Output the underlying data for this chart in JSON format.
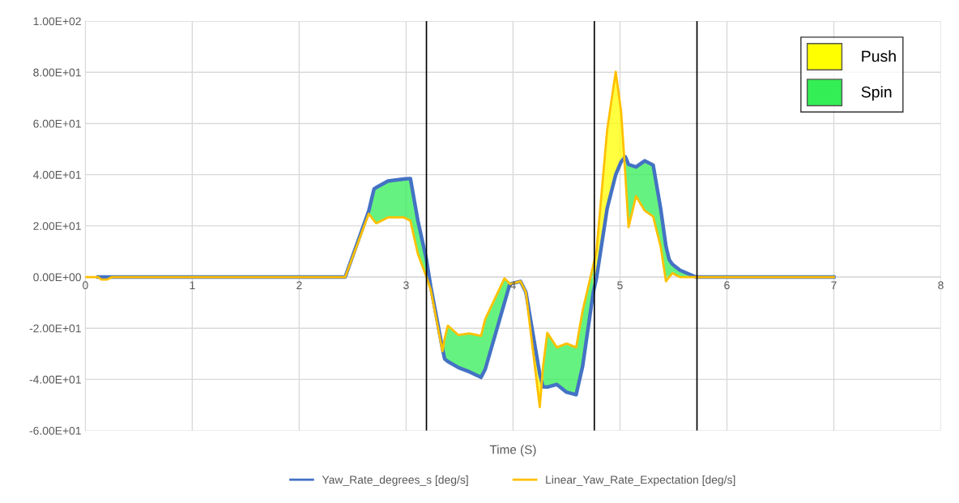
{
  "chart_data": {
    "type": "line",
    "xlabel": "Time (S)",
    "x": [
      0,
      0.12,
      0.15,
      0.2,
      0.25,
      2.43,
      2.65,
      2.7,
      2.72,
      2.83,
      2.98,
      3.04,
      3.11,
      3.19,
      3.23,
      3.34,
      3.36,
      3.39,
      3.49,
      3.59,
      3.7,
      3.74,
      3.92,
      3.97,
      4.07,
      4.12,
      4.25,
      4.28,
      4.32,
      4.41,
      4.5,
      4.59,
      4.65,
      4.75,
      4.78,
      4.88,
      4.96,
      5.01,
      5.05,
      5.08,
      5.15,
      5.23,
      5.31,
      5.38,
      5.43,
      5.46,
      5.49,
      5.56,
      5.71,
      7.0
    ],
    "series": [
      {
        "name": "Push",
        "color": "#ffff00",
        "values": [
          null,
          null,
          null,
          null,
          null,
          null,
          null,
          null,
          null,
          null,
          null,
          null,
          null,
          null,
          null,
          null,
          null,
          null,
          null,
          null,
          null,
          null,
          null,
          null,
          null,
          null,
          null,
          null,
          null,
          null,
          null,
          null,
          null,
          null,
          null,
          null,
          null,
          null,
          null,
          null,
          null,
          null,
          null,
          null,
          null,
          null,
          null,
          null,
          null,
          null
        ],
        "lower": [
          null,
          null,
          null,
          null,
          null,
          null,
          null,
          null,
          null,
          null,
          null,
          null,
          null,
          0,
          -5,
          -29,
          null,
          null,
          null,
          null,
          null,
          null,
          null,
          null,
          -1.7,
          -6,
          -50.8,
          -35,
          null,
          null,
          null,
          null,
          null,
          4.6,
          10,
          57.5,
          80.2,
          64.8,
          40,
          null,
          null,
          null,
          null,
          null,
          null,
          null,
          null,
          null,
          null,
          null
        ],
        "upper": [
          null,
          null,
          null,
          null,
          null,
          null,
          null,
          null,
          null,
          null,
          null,
          null,
          null,
          6.8,
          -3.7,
          -28,
          null,
          null,
          null,
          null,
          null,
          null,
          null,
          null,
          -1.7,
          -5.9,
          -38,
          -42.9,
          null,
          null,
          null,
          null,
          null,
          -6,
          -0.5,
          26.8,
          40,
          45,
          47,
          null,
          null,
          null,
          null,
          null,
          null,
          null,
          null,
          null,
          null,
          null
        ]
      },
      {
        "name": "Spin",
        "color": "#33ee55",
        "values": [
          null,
          null,
          null,
          null,
          null,
          null,
          null,
          null,
          null,
          null,
          null,
          null,
          null,
          null,
          null,
          null,
          null,
          null,
          null,
          null,
          null,
          null,
          null,
          null,
          null,
          null,
          null,
          null,
          null,
          null,
          null,
          null,
          null,
          null,
          null,
          null,
          null,
          null,
          null,
          null,
          null,
          null,
          null,
          null,
          null,
          null,
          null,
          null,
          null,
          null
        ],
        "lower": [
          null,
          null,
          null,
          null,
          null,
          0,
          24.7,
          22,
          21,
          23.3,
          23.3,
          22,
          9,
          0,
          null,
          -29,
          -24,
          -19,
          -22.7,
          -22,
          -23,
          -16.4,
          -0.5,
          -2.7,
          -1.7,
          null,
          null,
          -35,
          -21.8,
          -27.5,
          -26,
          -27.5,
          -13.3,
          4.6,
          null,
          null,
          null,
          null,
          40,
          19.5,
          31.6,
          26,
          23.6,
          12,
          -1.7,
          0,
          1.5,
          0,
          0,
          0
        ],
        "upper": [
          null,
          null,
          null,
          null,
          null,
          0,
          25.8,
          34.4,
          35,
          37.5,
          38.3,
          38.5,
          22,
          6.8,
          null,
          -28,
          -32,
          -33,
          -35.4,
          -37,
          -39.2,
          -36,
          -10,
          -2.7,
          -1.7,
          null,
          null,
          -42.9,
          -43,
          -42,
          -45,
          -46,
          -35,
          -6,
          null,
          null,
          null,
          null,
          47,
          44,
          43,
          45.4,
          43.8,
          26.8,
          12,
          6.8,
          5,
          2.7,
          0,
          0
        ]
      },
      {
        "name": "Yaw_Rate_degrees_s [deg/s]",
        "type": "line",
        "color": "#4472c4",
        "values": [
          null,
          0,
          0,
          0,
          0,
          0,
          25.8,
          34.4,
          35,
          37.5,
          38.3,
          38.5,
          22,
          6.8,
          -3.7,
          -28,
          -32,
          -33,
          -35.4,
          -37,
          -39.2,
          -36,
          -10,
          -2.7,
          -1.7,
          -5.9,
          -38,
          -42.9,
          -43,
          -42,
          -45,
          -46,
          -35,
          -6,
          -0.5,
          26.8,
          40,
          45,
          47,
          44,
          43,
          45.4,
          43.8,
          26.8,
          12,
          6.8,
          5,
          2.7,
          0,
          0
        ]
      },
      {
        "name": "Linear_Yaw_Rate_Expectation [deg/s]",
        "type": "line",
        "color": "#ffc000",
        "values": [
          0,
          0,
          -1,
          -1,
          0,
          0,
          24.7,
          22,
          21,
          23.3,
          23.3,
          22,
          9,
          0,
          -5,
          -29,
          -24,
          -19,
          -22.7,
          -22,
          -23,
          -16.4,
          -0.5,
          -2.7,
          -1.7,
          -6,
          -50.8,
          -35,
          -21.8,
          -27.5,
          -26,
          -27.5,
          -13.3,
          4.6,
          10,
          57.5,
          80.2,
          64.8,
          40,
          19.5,
          31.6,
          26,
          23.6,
          12,
          -1.7,
          0,
          1.5,
          0,
          0,
          0
        ]
      }
    ],
    "xlim": [
      0,
      8
    ],
    "xticks": [
      0,
      1,
      2,
      3,
      4,
      5,
      6,
      7,
      8
    ],
    "ylim": [
      -60,
      100
    ],
    "yticks": [
      {
        "value": -60,
        "label": "-6.00E+01"
      },
      {
        "value": -40,
        "label": "-4.00E+01"
      },
      {
        "value": -20,
        "label": "-2.00E+01"
      },
      {
        "value": 0,
        "label": "0.00E+00"
      },
      {
        "value": 20,
        "label": "2.00E+01"
      },
      {
        "value": 40,
        "label": "4.00E+01"
      },
      {
        "value": 60,
        "label": "6.00E+01"
      },
      {
        "value": 80,
        "label": "8.00E+01"
      },
      {
        "value": 100,
        "label": "1.00E+02"
      }
    ],
    "ref_lines": [
      {
        "axis": "x",
        "value": 3.19,
        "color": "#000000"
      },
      {
        "axis": "x",
        "value": 4.76,
        "color": "#000000"
      },
      {
        "axis": "x",
        "value": 5.72,
        "color": "#000000"
      }
    ],
    "grid": true,
    "legend": "bottom",
    "marker": "none",
    "line_style": "solid"
  }
}
